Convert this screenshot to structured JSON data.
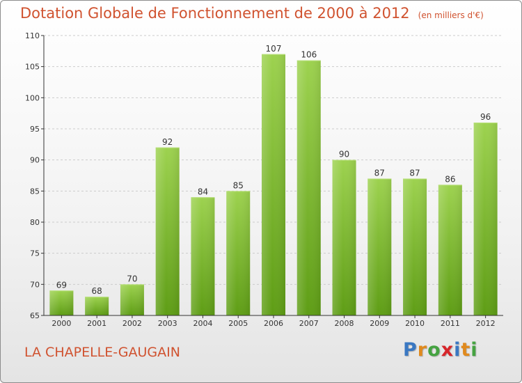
{
  "header": {
    "title": "Dotation Globale de Fonctionnement de 2000 à 2012",
    "unit": "(en milliers d'€)"
  },
  "footer": {
    "commune": "LA CHAPELLE-GAUGAIN",
    "logo_letters": [
      "P",
      "r",
      "o",
      "x",
      "i",
      "t",
      "i"
    ],
    "logo_colors": [
      "#3a78c2",
      "#e08a1e",
      "#45a341",
      "#d7262b",
      "#3a78c2",
      "#e08a1e",
      "#45a341"
    ]
  },
  "colors": {
    "title": "#d0522f",
    "bar_top": "#9dd24f",
    "bar_bottom": "#5e9d15",
    "axis": "#333333",
    "grid": "#cccccc"
  },
  "chart_data": {
    "type": "bar",
    "title": "Dotation Globale de Fonctionnement de 2000 à 2012",
    "subtitle": "(en milliers d'€)",
    "xlabel": "",
    "ylabel": "",
    "categories": [
      "2000",
      "2001",
      "2002",
      "2003",
      "2004",
      "2005",
      "2006",
      "2007",
      "2008",
      "2009",
      "2010",
      "2011",
      "2012"
    ],
    "values": [
      69,
      68,
      70,
      92,
      84,
      85,
      107,
      106,
      90,
      87,
      87,
      86,
      96
    ],
    "ylim": [
      65,
      110
    ],
    "yticks": [
      "65",
      "70",
      "75",
      "80",
      "85",
      "90",
      "95",
      "100",
      "105",
      "110"
    ],
    "grid": true,
    "data_labels": true
  }
}
